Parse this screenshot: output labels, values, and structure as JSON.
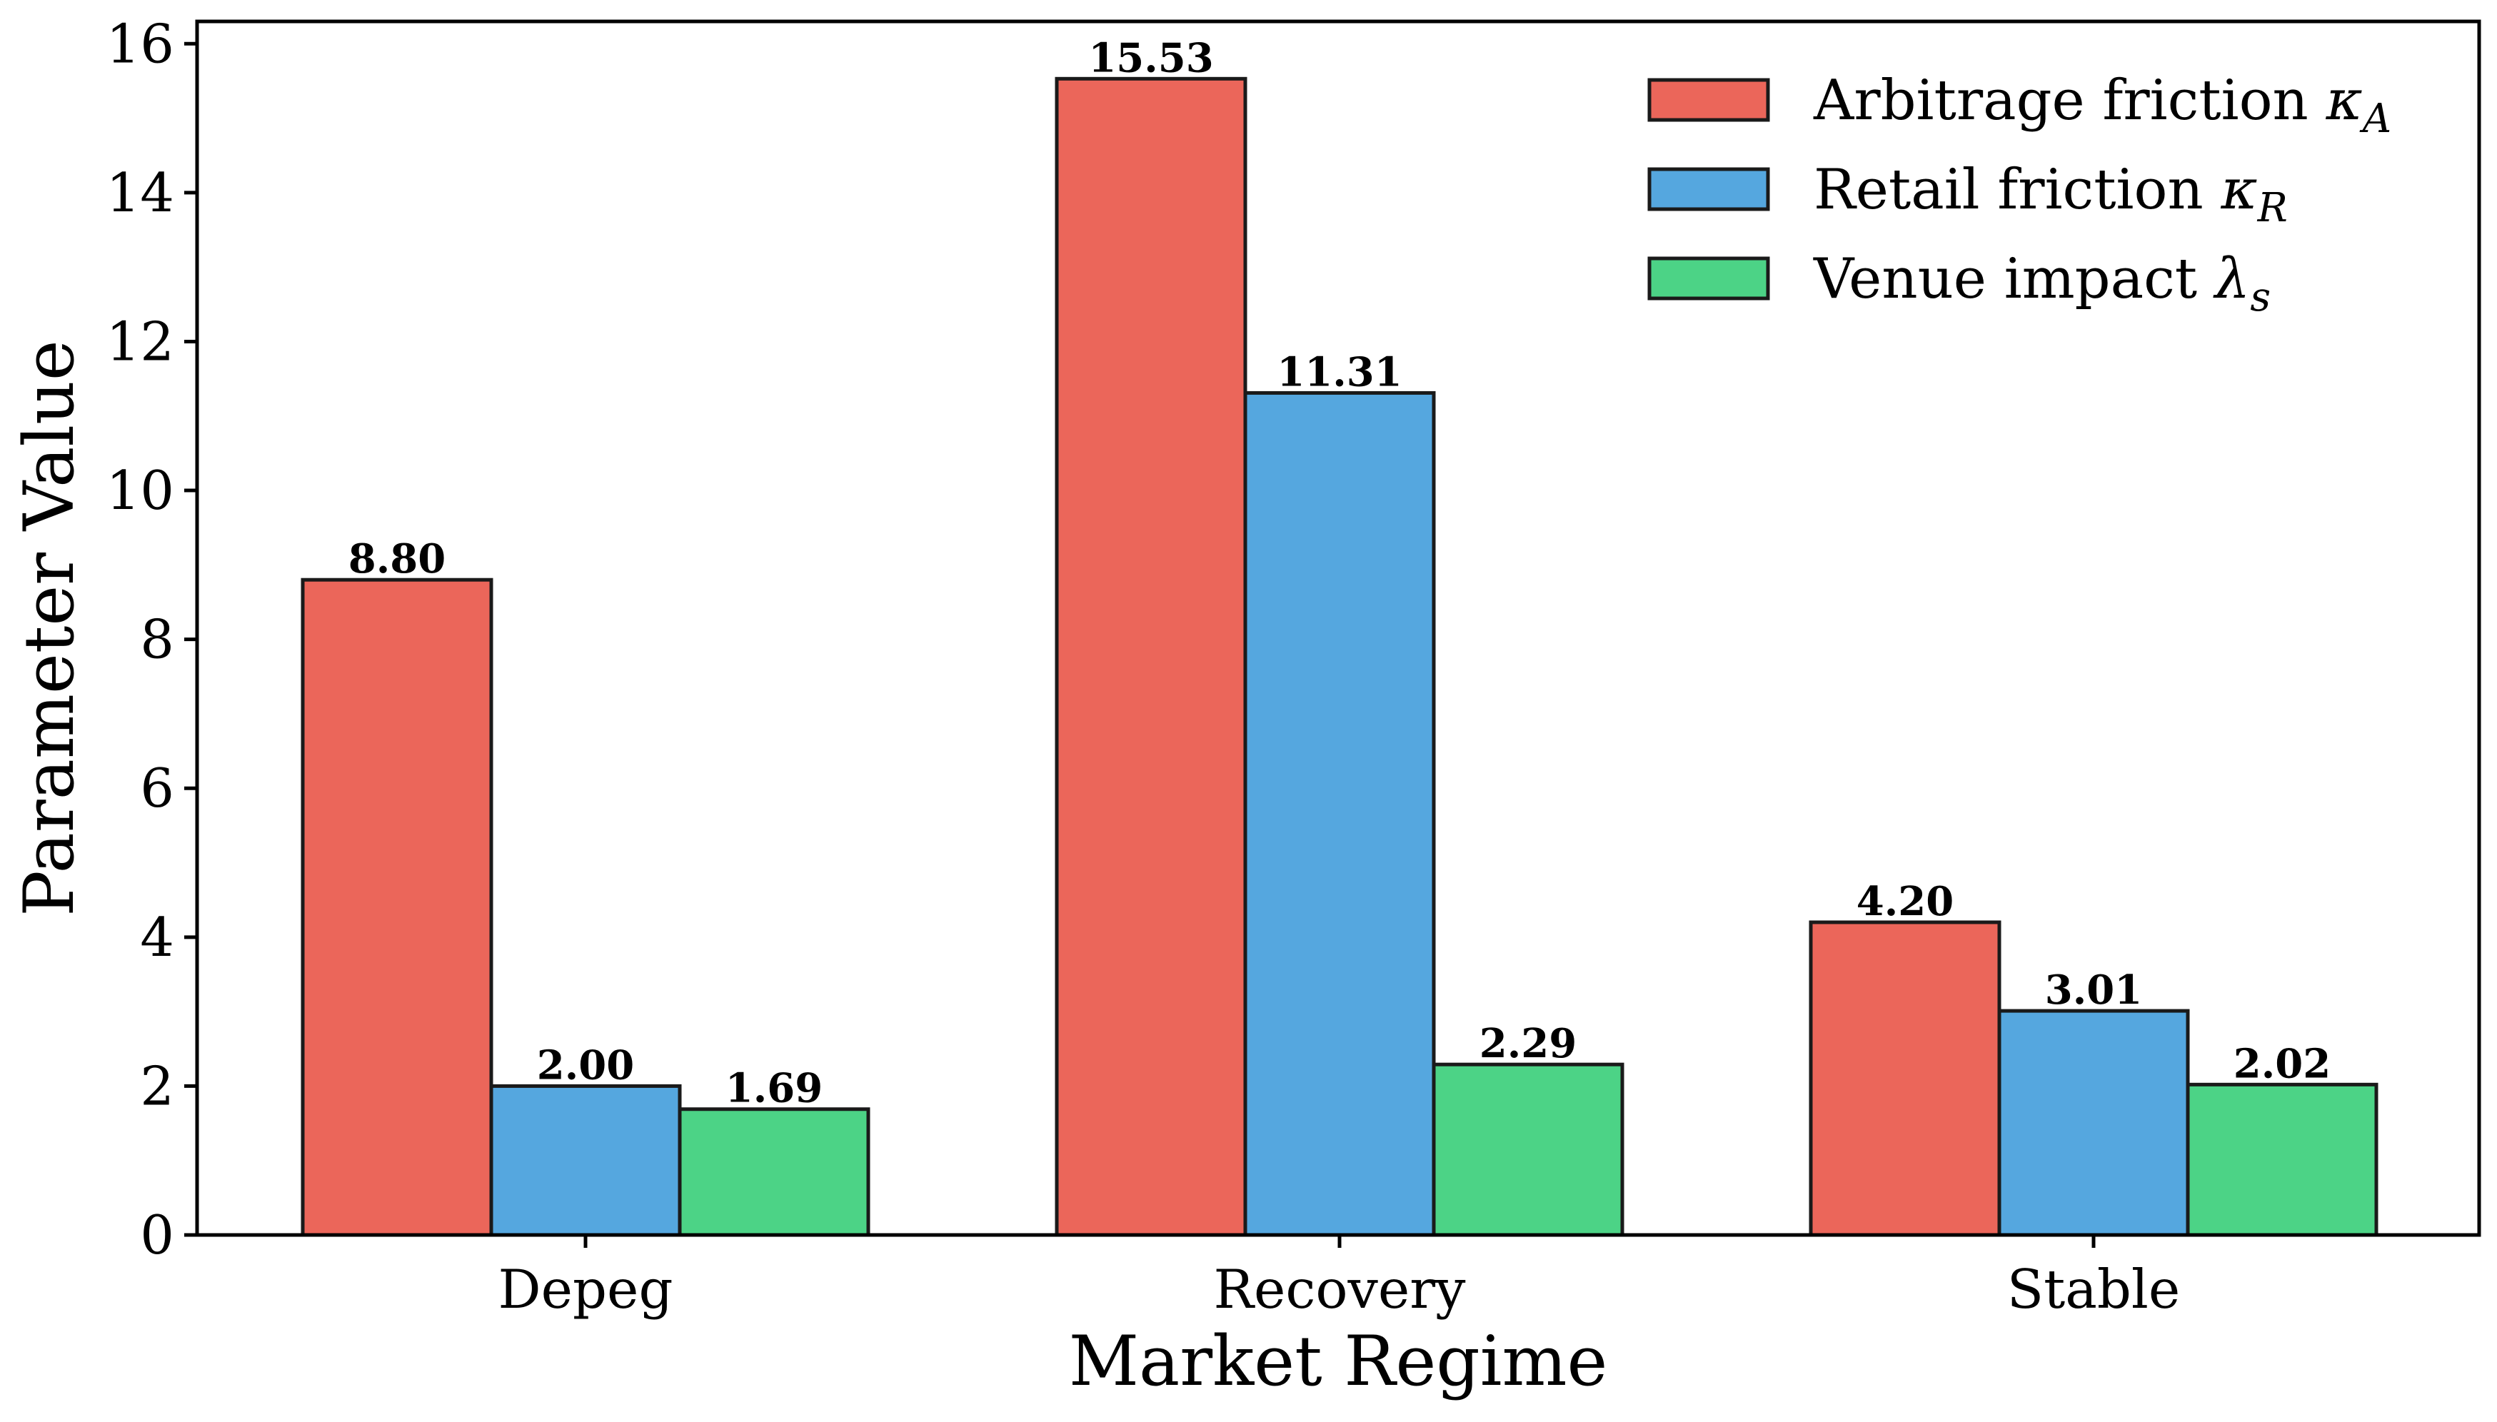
{
  "chart_data": {
    "type": "bar",
    "title": "",
    "xlabel": "Market Regime",
    "ylabel": "Parameter Value",
    "categories": [
      "Depeg",
      "Recovery",
      "Stable"
    ],
    "ylim": [
      0,
      16.3
    ],
    "yticks": [
      0,
      2,
      4,
      6,
      8,
      10,
      12,
      14,
      16
    ],
    "grid": false,
    "legend_position": "top-right",
    "series": [
      {
        "name": "Arbitrage friction",
        "symbol": "κ",
        "subscript": "A",
        "color": "#EB665A",
        "values": [
          8.8,
          15.53,
          4.2
        ],
        "labels": [
          "8.80",
          "15.53",
          "4.20"
        ]
      },
      {
        "name": "Retail friction",
        "symbol": "κ",
        "subscript": "R",
        "color": "#55A7DF",
        "values": [
          2.0,
          11.31,
          3.01
        ],
        "labels": [
          "2.00",
          "11.31",
          "3.01"
        ]
      },
      {
        "name": "Venue impact",
        "symbol": "λ",
        "subscript": "s",
        "color": "#4CD386",
        "values": [
          1.69,
          2.29,
          2.02
        ],
        "labels": [
          "1.69",
          "2.29",
          "2.02"
        ]
      }
    ]
  }
}
